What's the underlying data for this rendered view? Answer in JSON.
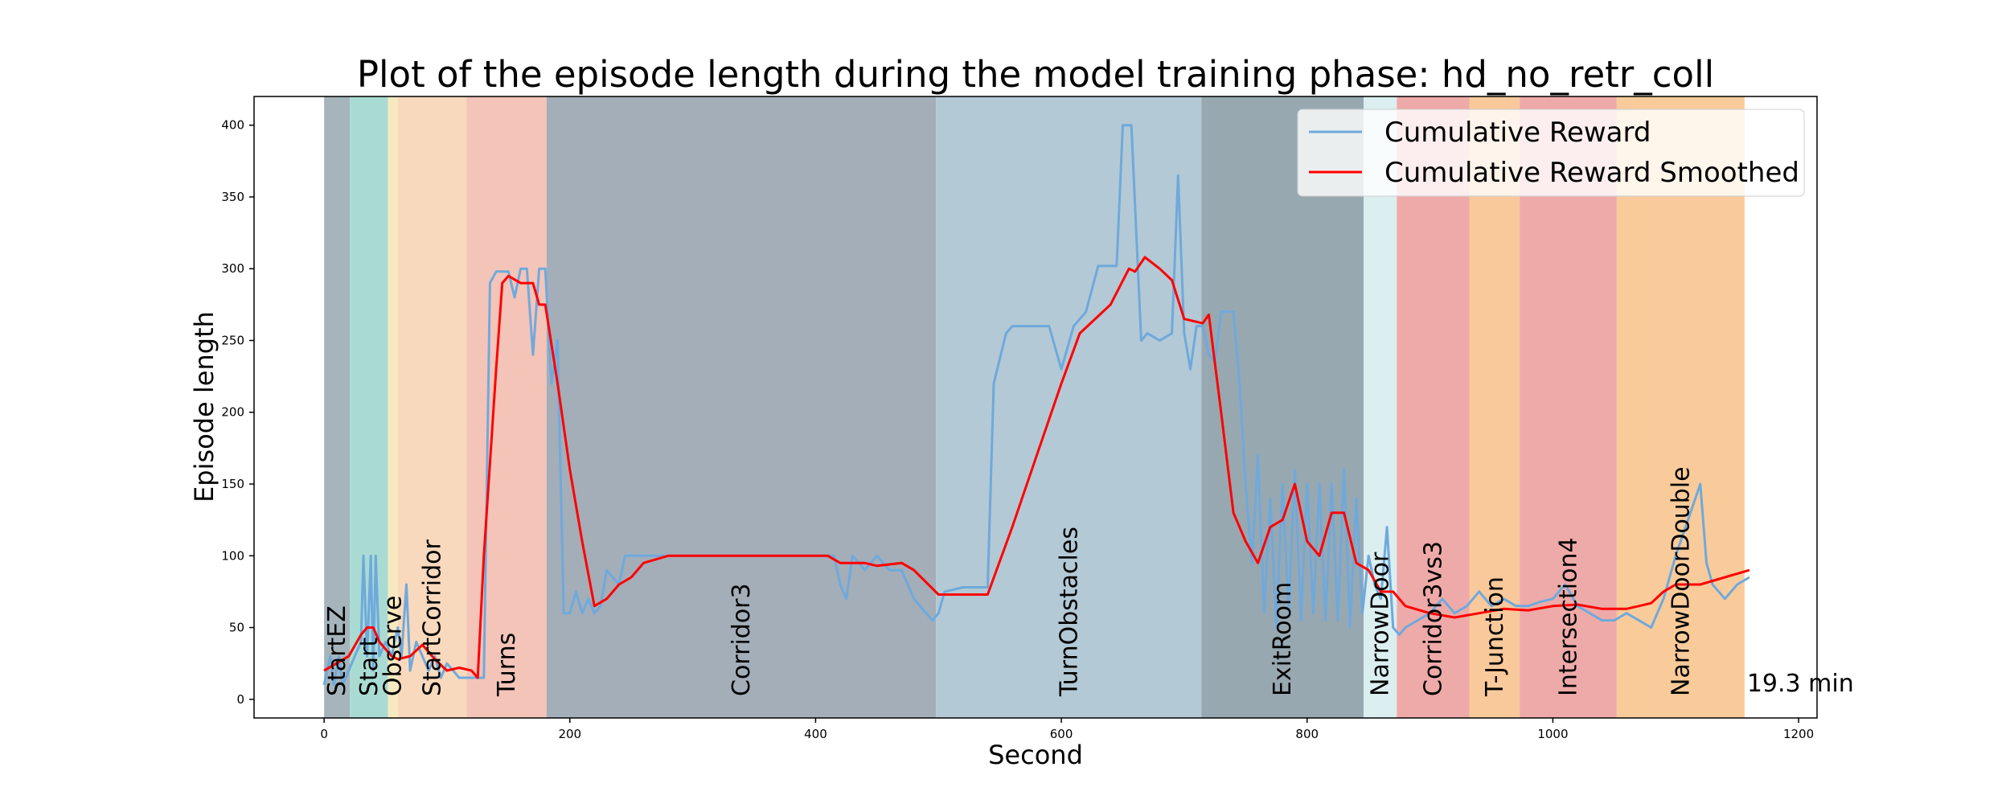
{
  "chart_data": {
    "type": "line",
    "title": "Plot of the episode length during the model training phase: hd_no_retr_coll",
    "xlabel": "Second",
    "ylabel": "Episode length",
    "xlim": [
      -57,
      1215
    ],
    "ylim": [
      -13,
      420
    ],
    "xticks": [
      0,
      200,
      400,
      600,
      800,
      1000,
      1200
    ],
    "yticks": [
      0,
      50,
      100,
      150,
      200,
      250,
      300,
      350,
      400
    ],
    "grid": false,
    "legend": "upper right",
    "annotation": "19.3 min",
    "regions": [
      {
        "label": "StartEZ",
        "start": 0,
        "end": 21,
        "color": "#a6b5bb"
      },
      {
        "label": "Start",
        "start": 21,
        "end": 52,
        "color": "#a9dbd3"
      },
      {
        "label": "Observe",
        "start": 52,
        "end": 60,
        "color": "#f6e9bf"
      },
      {
        "label": "StartCorridor",
        "start": 60,
        "end": 116,
        "color": "#f9d9bd"
      },
      {
        "label": "Turns",
        "start": 116,
        "end": 181,
        "color": "#f4c4b9"
      },
      {
        "label": "Corridor3",
        "start": 181,
        "end": 498,
        "color": "#a3aeb9"
      },
      {
        "label": "TurnObstacles",
        "start": 498,
        "end": 714,
        "color": "#b3c9d5"
      },
      {
        "label": "ExitRoom",
        "start": 714,
        "end": 846,
        "color": "#98a8b1"
      },
      {
        "label": "NarrowDoor",
        "start": 846,
        "end": 873,
        "color": "#dbeef0"
      },
      {
        "label": "Corridor3vs3",
        "start": 873,
        "end": 932,
        "color": "#eeaaa8"
      },
      {
        "label": "T-Junction",
        "start": 932,
        "end": 973,
        "color": "#f9c99b"
      },
      {
        "label": "Intersection4",
        "start": 973,
        "end": 1052,
        "color": "#eeaaa8"
      },
      {
        "label": "NarrowDoorDouble",
        "start": 1052,
        "end": 1156,
        "color": "#f9cb9a"
      }
    ],
    "series": [
      {
        "name": "Cumulative Reward",
        "color": "#6fa9dc",
        "x": [
          0,
          5,
          8,
          12,
          15,
          20,
          25,
          30,
          32,
          35,
          38,
          40,
          42,
          45,
          50,
          55,
          60,
          63,
          67,
          70,
          75,
          80,
          85,
          90,
          95,
          100,
          105,
          110,
          120,
          130,
          135,
          140,
          150,
          155,
          160,
          165,
          170,
          175,
          180,
          185,
          190,
          195,
          200,
          205,
          210,
          215,
          220,
          225,
          230,
          240,
          245,
          260,
          280,
          300,
          350,
          400,
          415,
          420,
          425,
          430,
          440,
          450,
          460,
          470,
          480,
          490,
          495,
          500,
          505,
          520,
          540,
          545,
          555,
          560,
          580,
          590,
          600,
          610,
          620,
          630,
          645,
          650,
          657,
          665,
          670,
          680,
          690,
          695,
          700,
          705,
          710,
          715,
          720,
          725,
          730,
          740,
          745,
          750,
          755,
          760,
          765,
          770,
          775,
          780,
          785,
          790,
          795,
          800,
          805,
          810,
          815,
          820,
          825,
          830,
          835,
          840,
          845,
          850,
          855,
          860,
          865,
          870,
          875,
          880,
          890,
          900,
          910,
          920,
          930,
          940,
          950,
          960,
          970,
          980,
          990,
          1000,
          1010,
          1020,
          1030,
          1040,
          1050,
          1060,
          1070,
          1080,
          1090,
          1100,
          1110,
          1120,
          1125,
          1130,
          1140,
          1150,
          1160
        ],
        "values": [
          10,
          30,
          10,
          30,
          10,
          20,
          30,
          40,
          100,
          30,
          100,
          20,
          100,
          30,
          40,
          30,
          50,
          30,
          80,
          20,
          40,
          30,
          20,
          30,
          15,
          25,
          20,
          15,
          15,
          15,
          290,
          298,
          298,
          280,
          300,
          300,
          240,
          300,
          300,
          220,
          250,
          60,
          60,
          75,
          60,
          70,
          60,
          65,
          90,
          80,
          100,
          100,
          100,
          100,
          100,
          100,
          100,
          80,
          70,
          100,
          90,
          100,
          90,
          90,
          70,
          60,
          55,
          60,
          75,
          78,
          78,
          220,
          255,
          260,
          260,
          260,
          230,
          260,
          270,
          302,
          302,
          400,
          400,
          250,
          255,
          250,
          255,
          365,
          255,
          230,
          260,
          260,
          240,
          235,
          270,
          270,
          220,
          150,
          95,
          170,
          60,
          140,
          50,
          150,
          60,
          160,
          55,
          150,
          60,
          150,
          55,
          150,
          55,
          160,
          50,
          140,
          60,
          100,
          80,
          70,
          120,
          50,
          45,
          50,
          55,
          60,
          70,
          60,
          65,
          75,
          65,
          70,
          65,
          65,
          68,
          70,
          80,
          65,
          60,
          55,
          55,
          60,
          55,
          50,
          70,
          100,
          125,
          150,
          95,
          80,
          70,
          80,
          85
        ]
      },
      {
        "name": "Cumulative Reward Smoothed",
        "color": "#ff0000",
        "x": [
          0,
          10,
          20,
          30,
          35,
          40,
          45,
          50,
          55,
          60,
          70,
          80,
          90,
          100,
          110,
          120,
          125,
          130,
          140,
          145,
          150,
          160,
          170,
          175,
          180,
          190,
          200,
          210,
          220,
          230,
          240,
          250,
          260,
          280,
          300,
          400,
          410,
          420,
          440,
          450,
          470,
          480,
          500,
          520,
          540,
          560,
          580,
          600,
          615,
          640,
          655,
          660,
          668,
          680,
          690,
          700,
          715,
          720,
          730,
          740,
          750,
          760,
          770,
          780,
          790,
          800,
          810,
          820,
          830,
          840,
          850,
          860,
          870,
          880,
          900,
          920,
          940,
          960,
          980,
          1000,
          1020,
          1040,
          1060,
          1080,
          1090,
          1100,
          1120,
          1140,
          1160
        ],
        "values": [
          20,
          25,
          30,
          45,
          50,
          50,
          40,
          35,
          30,
          28,
          30,
          38,
          28,
          20,
          22,
          20,
          15,
          100,
          230,
          290,
          295,
          290,
          290,
          275,
          275,
          220,
          160,
          110,
          65,
          70,
          80,
          85,
          95,
          100,
          100,
          100,
          100,
          95,
          95,
          93,
          95,
          90,
          73,
          73,
          73,
          120,
          170,
          220,
          255,
          275,
          300,
          298,
          308,
          300,
          292,
          265,
          262,
          268,
          200,
          130,
          110,
          95,
          120,
          125,
          150,
          110,
          100,
          130,
          130,
          95,
          90,
          75,
          75,
          65,
          60,
          57,
          60,
          63,
          62,
          65,
          66,
          63,
          63,
          67,
          75,
          80,
          80,
          85,
          90
        ]
      }
    ]
  }
}
